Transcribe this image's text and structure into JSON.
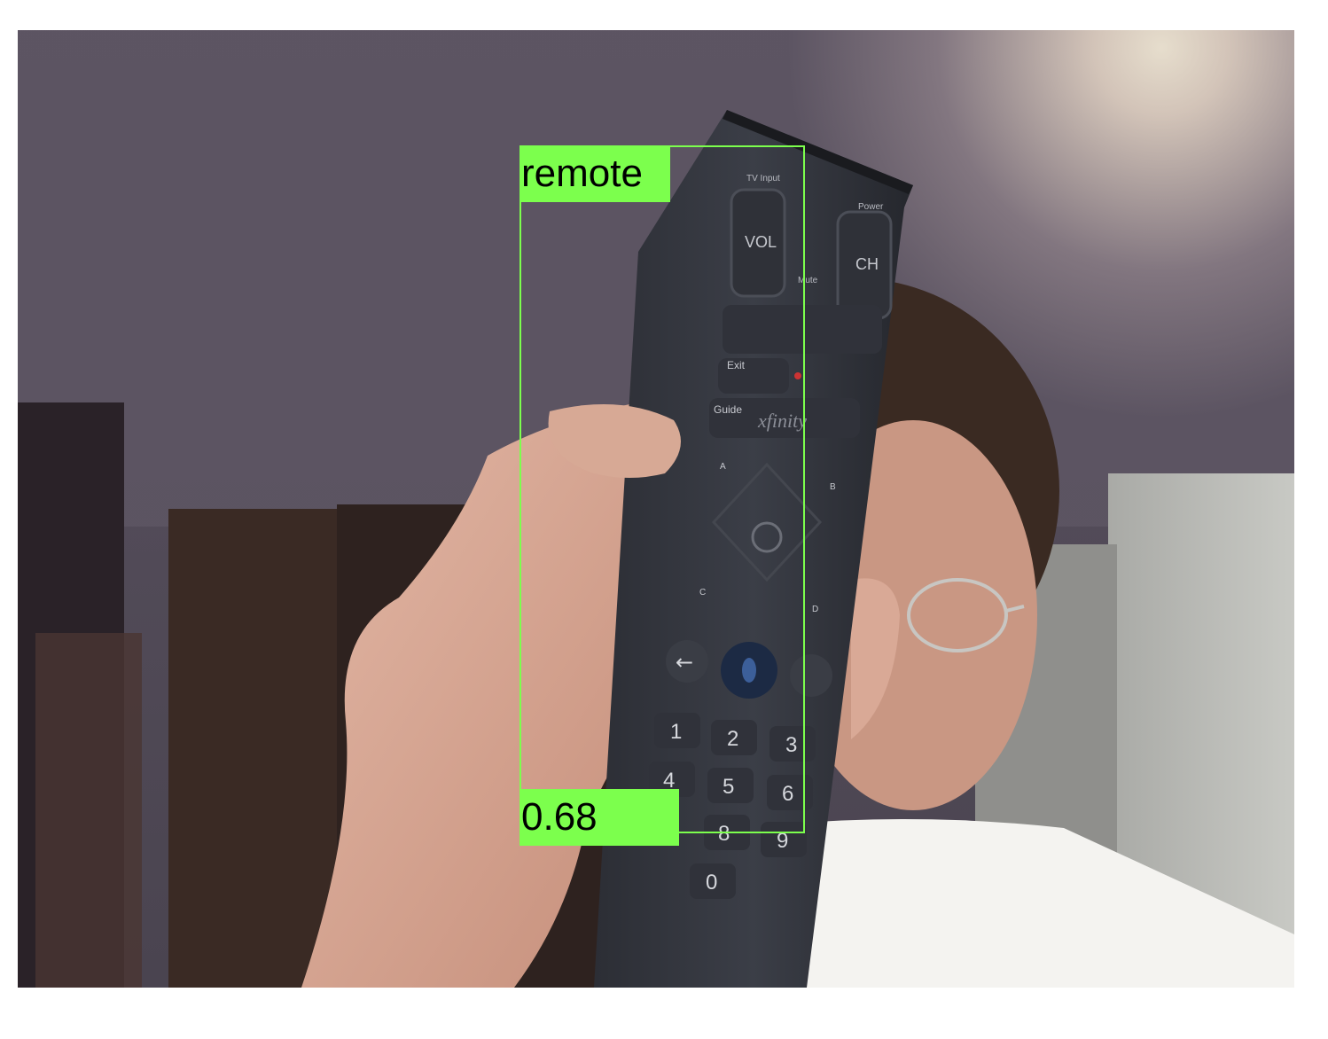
{
  "detections": [
    {
      "label": "remote",
      "score": "0.68"
    }
  ],
  "colors": {
    "box": "#7cff4d",
    "label_bg": "#7cff4d",
    "label_text": "#000000"
  },
  "remote_printed_text": {
    "brand": "xfinity",
    "buttons": [
      "TV Input",
      "Power",
      "VOL",
      "CH",
      "Mute",
      "Exit",
      "Guide",
      "A",
      "B",
      "C",
      "D",
      "1",
      "2",
      "3",
      "4",
      "5",
      "6",
      "8",
      "9",
      "0"
    ]
  }
}
